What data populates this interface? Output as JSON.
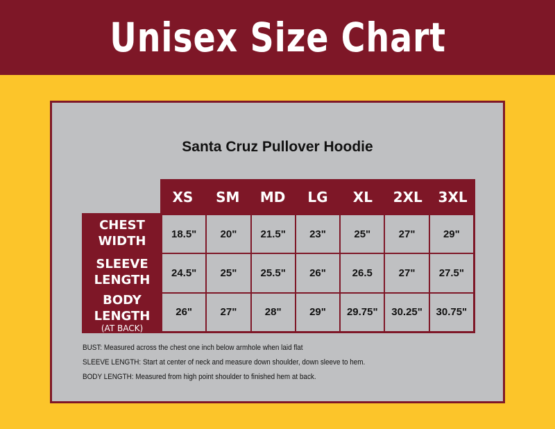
{
  "header": {
    "title": "Unisex Size Chart"
  },
  "colors": {
    "maroon": "#7e1727",
    "yellow": "#fcc52a",
    "gray": "#bfc0c2"
  },
  "product": "Santa Cruz Pullover Hoodie",
  "sizes": [
    "XS",
    "SM",
    "MD",
    "LG",
    "XL",
    "2XL",
    "3XL"
  ],
  "rows": [
    {
      "label1": "CHEST",
      "label2": "WIDTH",
      "note": "",
      "values": [
        "18.5\"",
        "20\"",
        "21.5\"",
        "23\"",
        "25\"",
        "27\"",
        "29\""
      ]
    },
    {
      "label1": "SLEEVE",
      "label2": "LENGTH",
      "note": "",
      "values": [
        "24.5\"",
        "25\"",
        "25.5\"",
        "26\"",
        "26.5",
        "27\"",
        "27.5\""
      ]
    },
    {
      "label1": "BODY",
      "label2": "LENGTH",
      "note": "(AT BACK)",
      "values": [
        "26\"",
        "27\"",
        "28\"",
        "29\"",
        "29.75\"",
        "30.25\"",
        "30.75\""
      ]
    }
  ],
  "notes": [
    {
      "term": "BUST:",
      "text": " Measured across the chest one inch below armhole when laid flat"
    },
    {
      "term": "SLEEVE LENGTH:",
      "text": " Start at center of neck and measure down shoulder, down sleeve to hem."
    },
    {
      "term": "BODY LENGTH:",
      "text": " Measured from high point shoulder to finished hem at back."
    }
  ]
}
